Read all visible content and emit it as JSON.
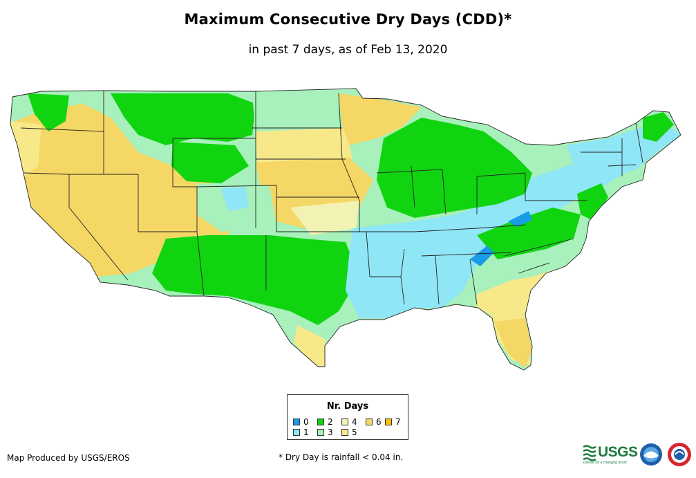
{
  "title": "Maximum Consecutive Dry Days (CDD)*",
  "subtitle": "in past 7 days, as of Feb 13, 2020",
  "legend": {
    "title": "Nr. Days",
    "items": [
      {
        "label": "0",
        "color": "#1a9be6"
      },
      {
        "label": "1",
        "color": "#8fe6f6"
      },
      {
        "label": "2",
        "color": "#11d411"
      },
      {
        "label": "3",
        "color": "#a8f0bc"
      },
      {
        "label": "4",
        "color": "#f2f2b4"
      },
      {
        "label": "5",
        "color": "#f7e98a"
      },
      {
        "label": "6",
        "color": "#f5d766"
      },
      {
        "label": "7",
        "color": "#f7c300"
      }
    ]
  },
  "footer": {
    "credit": "Map Produced by USGS/EROS",
    "note": "* Dry Day is rainfall < 0.04 in."
  },
  "logos": {
    "usgs": "USGS",
    "usgs_tagline": "science for a changing world"
  },
  "map": {
    "region": "Contiguous United States",
    "colors": {
      "water": "#ffffff",
      "state_border": "#222222",
      "0": "#1a9be6",
      "1": "#8fe6f6",
      "2": "#11d411",
      "3": "#a8f0bc",
      "4": "#f2f2b4",
      "5": "#f7e98a",
      "6": "#f5d766",
      "7": "#f7c300"
    }
  }
}
